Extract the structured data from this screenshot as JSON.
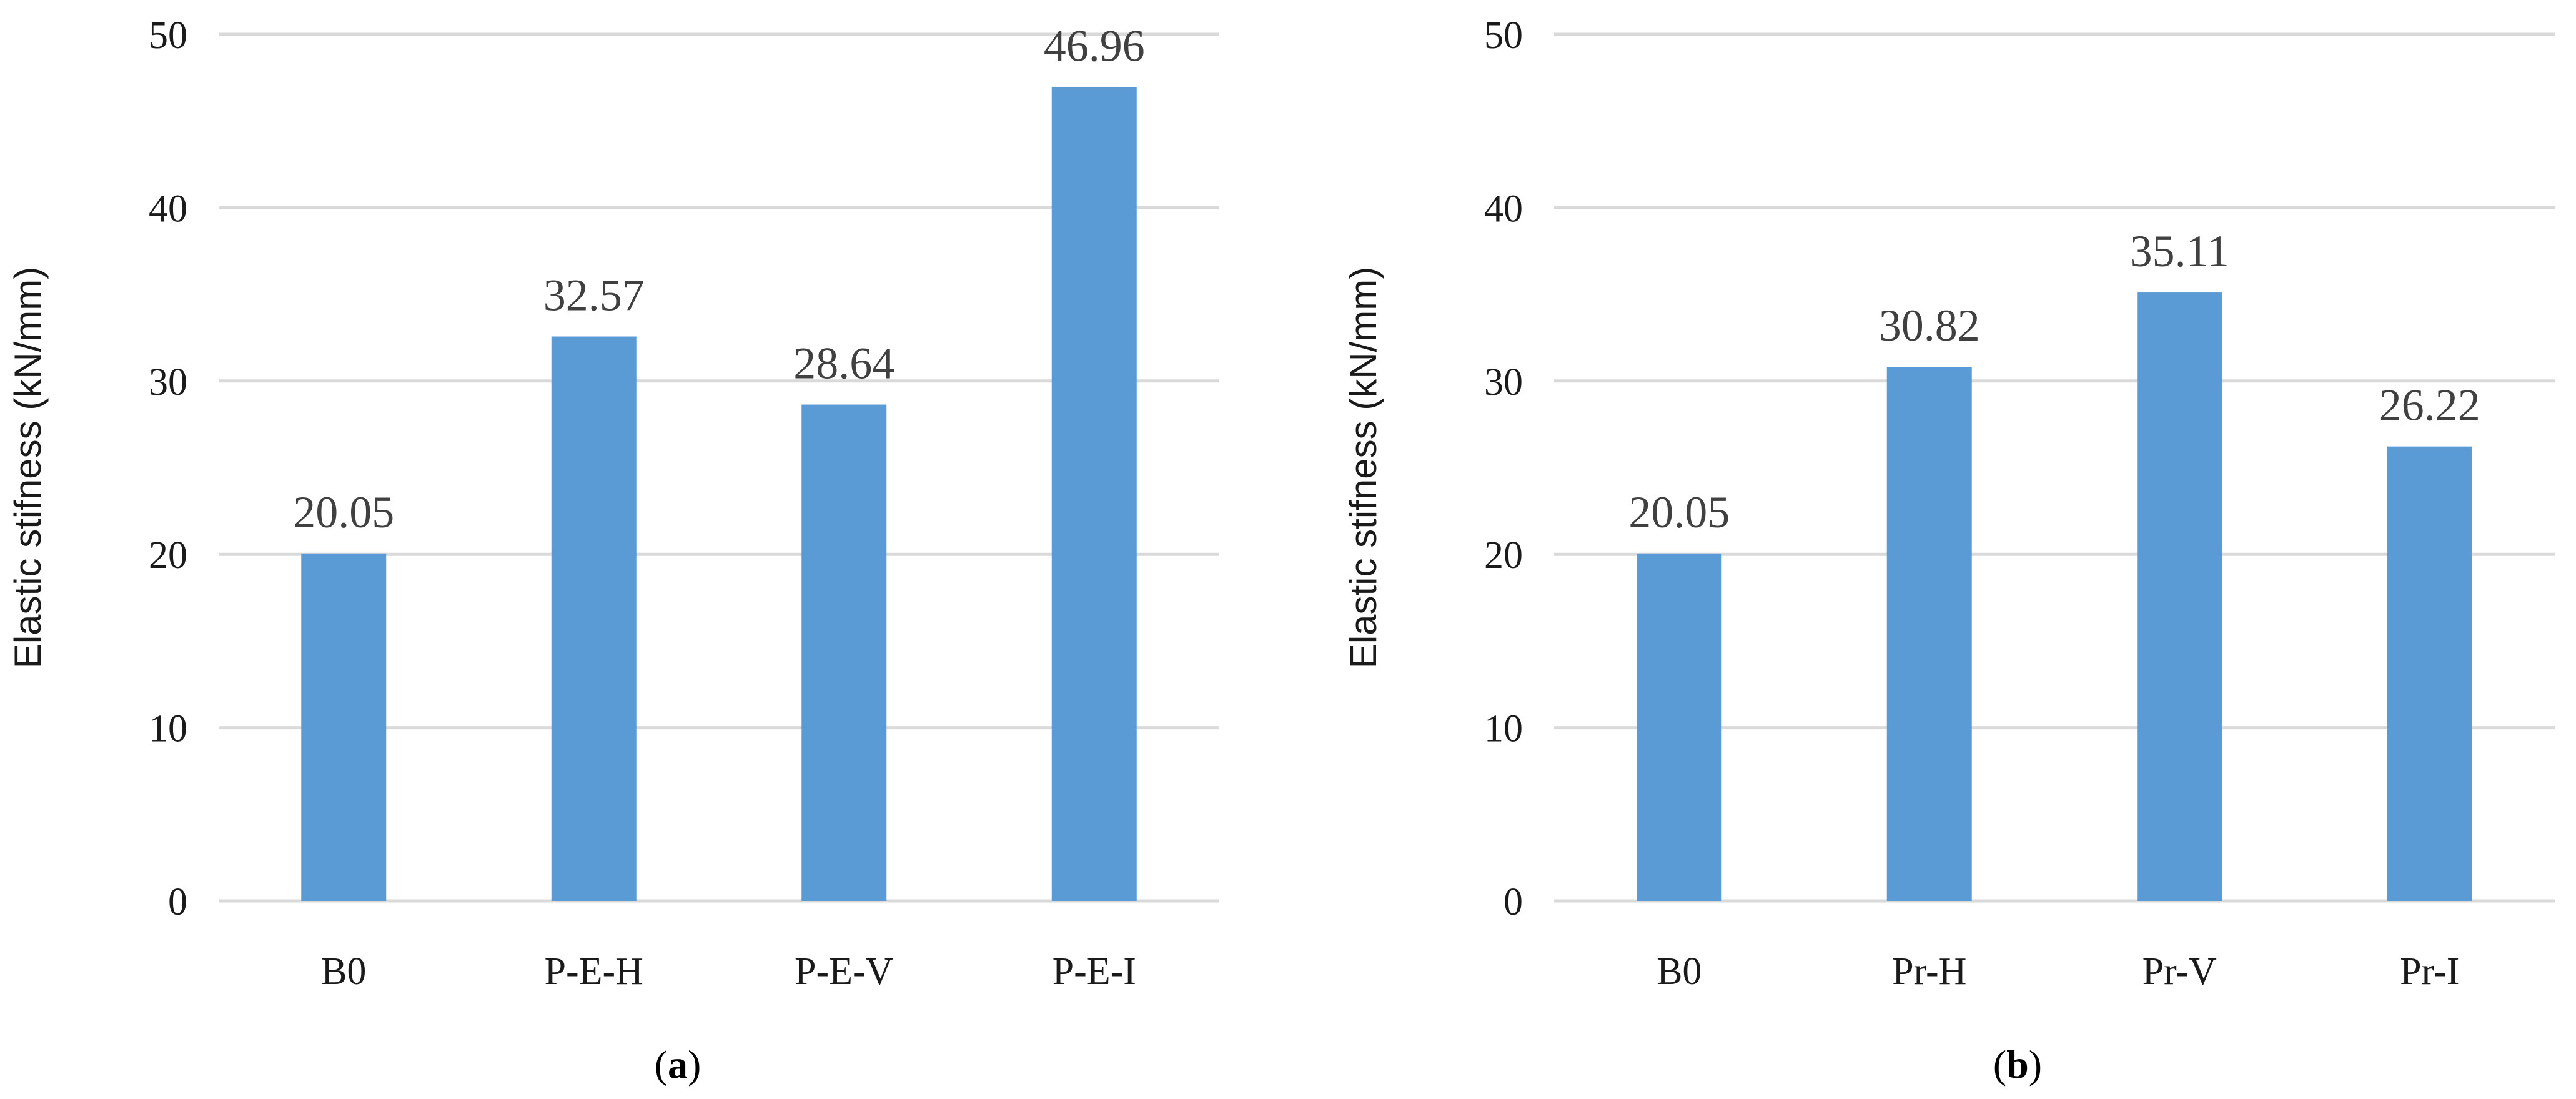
{
  "chart_data": [
    {
      "type": "bar",
      "panel_label": "a",
      "categories": [
        "B0",
        "P-E-H",
        "P-E-V",
        "P-E-I"
      ],
      "values": [
        20.05,
        32.57,
        28.64,
        46.96
      ],
      "value_labels": [
        "20.05",
        "32.57",
        "28.64",
        "46.96"
      ],
      "ylabel": "Elastic stifness (kN/mm)",
      "xlabel": "",
      "ylim": [
        0,
        50
      ],
      "yticks": [
        "0",
        "10",
        "20",
        "30",
        "40",
        "50"
      ],
      "grid": true,
      "bar_color": "#5b9bd5"
    },
    {
      "type": "bar",
      "panel_label": "b",
      "categories": [
        "B0",
        "Pr-H",
        "Pr-V",
        "Pr-I"
      ],
      "values": [
        20.05,
        30.82,
        35.11,
        26.22
      ],
      "value_labels": [
        "20.05",
        "30.82",
        "35.11",
        "26.22"
      ],
      "ylabel": "Elastic stifness (kN/mm)",
      "xlabel": "",
      "ylim": [
        0,
        50
      ],
      "yticks": [
        "0",
        "10",
        "20",
        "30",
        "40",
        "50"
      ],
      "grid": true,
      "bar_color": "#5b9bd5"
    }
  ]
}
